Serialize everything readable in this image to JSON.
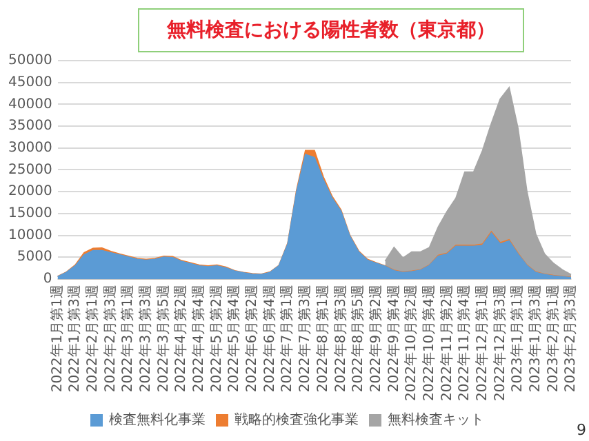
{
  "chart_data": {
    "type": "area",
    "stacked": true,
    "title": "無料検査における陽性者数（東京都）",
    "categories": [
      "2022年1月第1週",
      null,
      "2022年1月第3週",
      null,
      "2022年2月第1週",
      null,
      "2022年2月第3週",
      null,
      "2022年3月第1週",
      null,
      "2022年3月第3週",
      null,
      "2022年3月第5週",
      null,
      "2022年4月第2週",
      null,
      "2022年4月第4週",
      null,
      "2022年5月第2週",
      null,
      "2022年5月第4週",
      null,
      "2022年6月第2週",
      null,
      "2022年6月第4週",
      null,
      "2022年7月第1週",
      null,
      "2022年7月第3週",
      null,
      "2022年8月第1週",
      null,
      "2022年8月第3週",
      null,
      "2022年8月第5週",
      null,
      "2022年9月第2週",
      null,
      "2022年9月第4週",
      null,
      "2022年10月第2週",
      null,
      "2022年10月第4週",
      null,
      "2022年11月第2週",
      null,
      "2022年11月第4週",
      null,
      "2022年12月第1週",
      null,
      "2022年12月第3週",
      null,
      "2023年1月第1週",
      null,
      "2023年1月第3週",
      null,
      "2023年2月第1週",
      null,
      "2023年2月第3週"
    ],
    "series": [
      {
        "name": "検査無料化事業",
        "color": "#5b9bd5",
        "values": [
          500,
          1500,
          3000,
          5500,
          6500,
          6500,
          6000,
          5500,
          5000,
          4500,
          4300,
          4500,
          5000,
          4900,
          4000,
          3500,
          3000,
          2800,
          3000,
          2500,
          1800,
          1400,
          1100,
          1000,
          1500,
          3000,
          8000,
          20000,
          28500,
          27800,
          22700,
          18500,
          15500,
          9800,
          6200,
          4300,
          3600,
          2900,
          1900,
          1500,
          1700,
          2000,
          3100,
          5200,
          5700,
          7500,
          7500,
          7500,
          7700,
          10500,
          8000,
          8700,
          5700,
          3100,
          1500,
          1000,
          700,
          500,
          300
        ]
      },
      {
        "name": "戦略的検査強化事業",
        "color": "#ed7d31",
        "values": [
          100,
          100,
          200,
          500,
          500,
          600,
          300,
          200,
          200,
          200,
          200,
          200,
          200,
          200,
          200,
          200,
          200,
          200,
          200,
          200,
          100,
          100,
          100,
          100,
          100,
          100,
          200,
          400,
          900,
          1600,
          700,
          400,
          300,
          200,
          200,
          200,
          100,
          100,
          100,
          100,
          100,
          100,
          100,
          200,
          200,
          200,
          200,
          200,
          300,
          300,
          300,
          300,
          200,
          100,
          100,
          100,
          100,
          100,
          100
        ]
      },
      {
        "name": "無料検査キット",
        "color": "#a5a5a5",
        "values": [
          null,
          null,
          null,
          null,
          null,
          null,
          null,
          null,
          null,
          null,
          null,
          null,
          null,
          null,
          null,
          null,
          null,
          null,
          null,
          null,
          null,
          null,
          null,
          null,
          null,
          null,
          null,
          null,
          null,
          null,
          null,
          null,
          null,
          null,
          null,
          null,
          null,
          1100,
          5200,
          3200,
          4400,
          4100,
          4000,
          6500,
          9600,
          10800,
          16800,
          16800,
          21400,
          24800,
          32900,
          34800,
          28600,
          16900,
          8700,
          4600,
          2800,
          1500,
          600
        ]
      }
    ],
    "ylim": [
      0,
      50000
    ],
    "yticks": [
      0,
      5000,
      10000,
      15000,
      20000,
      25000,
      30000,
      35000,
      40000,
      45000,
      50000
    ],
    "grid": "y",
    "legend": "bottom",
    "annotations": [
      "9"
    ]
  }
}
